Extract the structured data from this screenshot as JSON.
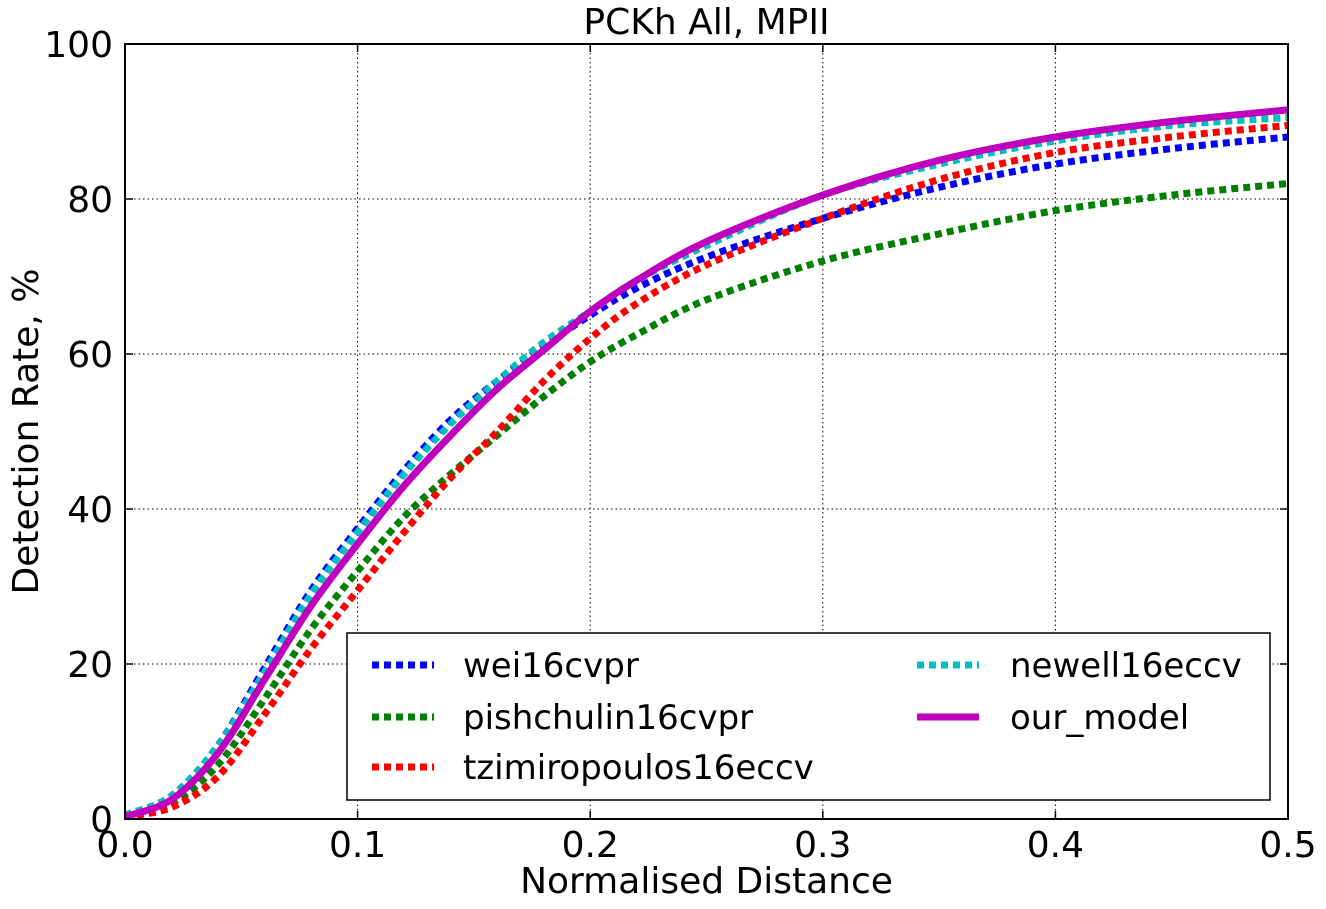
{
  "chart_data": {
    "type": "line",
    "title": "PCKh All, MPII",
    "xlabel": "Normalised Distance",
    "ylabel": "Detection Rate, %",
    "xlim": [
      0.0,
      0.5
    ],
    "ylim": [
      0,
      100
    ],
    "xticks": [
      "0.0",
      "0.1",
      "0.2",
      "0.3",
      "0.4",
      "0.5"
    ],
    "yticks": [
      "0",
      "20",
      "40",
      "60",
      "80",
      "100"
    ],
    "grid": true,
    "legend_placement": "lower-right",
    "x": [
      0.0,
      0.02,
      0.04,
      0.06,
      0.08,
      0.1,
      0.12,
      0.14,
      0.16,
      0.18,
      0.2,
      0.22,
      0.25,
      0.3,
      0.35,
      0.4,
      0.45,
      0.5
    ],
    "series": [
      {
        "name": "wei16cvpr",
        "color": "#0000ff",
        "style": "dotted",
        "values": [
          0.5,
          3.0,
          9.5,
          19.5,
          29.5,
          37.5,
          45.0,
          51.5,
          56.5,
          61.0,
          65.0,
          68.5,
          72.5,
          77.5,
          81.5,
          84.5,
          86.5,
          88.0
        ]
      },
      {
        "name": "pishchulin16cvpr",
        "color": "#008000",
        "style": "dotted",
        "values": [
          0.3,
          2.0,
          7.0,
          15.5,
          24.5,
          32.0,
          39.0,
          44.5,
          49.5,
          54.5,
          59.0,
          62.5,
          67.0,
          72.0,
          75.5,
          78.5,
          80.5,
          82.0
        ]
      },
      {
        "name": "tzimiropoulos16eccv",
        "color": "#ff0000",
        "style": "dotted",
        "values": [
          0.3,
          1.5,
          5.5,
          13.5,
          22.0,
          29.5,
          37.0,
          44.0,
          50.0,
          56.5,
          62.0,
          66.5,
          71.5,
          77.5,
          82.5,
          86.0,
          88.0,
          89.5
        ]
      },
      {
        "name": "newell16eccv",
        "color": "#00bfbf",
        "style": "dotted",
        "values": [
          0.5,
          3.0,
          9.5,
          19.0,
          29.0,
          37.0,
          44.5,
          51.0,
          56.5,
          61.5,
          65.5,
          69.5,
          74.0,
          80.5,
          84.5,
          87.5,
          89.5,
          90.5
        ]
      },
      {
        "name": "our_model",
        "color": "#bf00bf",
        "style": "solid",
        "values": [
          0.3,
          2.5,
          8.5,
          18.0,
          27.5,
          35.5,
          43.0,
          49.5,
          55.5,
          60.5,
          65.5,
          69.5,
          74.5,
          80.5,
          85.0,
          88.0,
          90.0,
          91.5
        ]
      }
    ]
  }
}
